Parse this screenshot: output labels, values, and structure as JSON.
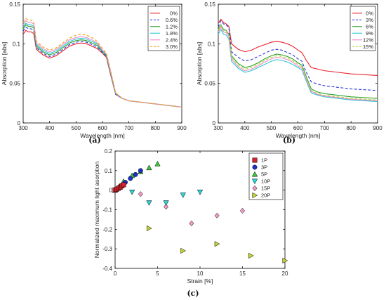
{
  "chart_data": [
    {
      "type": "line",
      "caption": "(a)",
      "xlabel": "Wavelength [nm]",
      "ylabel": "Absorption [abs]",
      "xlim": [
        300,
        900
      ],
      "ylim": [
        0,
        0.15
      ],
      "xticks": [
        300,
        400,
        500,
        600,
        700,
        800,
        900
      ],
      "yticks": [
        0,
        0.05,
        0.1,
        0.15
      ],
      "legend_position": "top-right",
      "x": [
        300,
        310,
        320,
        330,
        340,
        350,
        375,
        400,
        425,
        450,
        475,
        500,
        520,
        540,
        560,
        580,
        600,
        615,
        630,
        650,
        675,
        700,
        750,
        800,
        850,
        900
      ],
      "series": [
        {
          "name": "0%",
          "color": "#e8202a",
          "dash": "solid",
          "values": [
            0.112,
            0.117,
            0.115,
            0.115,
            0.113,
            0.093,
            0.086,
            0.082,
            0.085,
            0.091,
            0.097,
            0.1,
            0.101,
            0.1,
            0.097,
            0.094,
            0.088,
            0.083,
            0.062,
            0.036,
            0.031,
            0.028,
            0.026,
            0.024,
            0.022,
            0.02
          ]
        },
        {
          "name": "0.6%",
          "color": "#2a35d8",
          "dash": "dashed",
          "values": [
            0.116,
            0.121,
            0.119,
            0.119,
            0.117,
            0.095,
            0.088,
            0.084,
            0.087,
            0.093,
            0.099,
            0.102,
            0.103,
            0.102,
            0.099,
            0.096,
            0.089,
            0.084,
            0.063,
            0.036,
            0.031,
            0.028,
            0.026,
            0.024,
            0.022,
            0.02
          ]
        },
        {
          "name": "1.2%",
          "color": "#2ca02c",
          "dash": "solid",
          "values": [
            0.119,
            0.124,
            0.122,
            0.122,
            0.12,
            0.097,
            0.09,
            0.086,
            0.089,
            0.095,
            0.101,
            0.104,
            0.105,
            0.104,
            0.101,
            0.098,
            0.09,
            0.085,
            0.064,
            0.037,
            0.031,
            0.028,
            0.026,
            0.024,
            0.022,
            0.02
          ]
        },
        {
          "name": "1.8%",
          "color": "#2ec7d6",
          "dash": "solid",
          "values": [
            0.121,
            0.126,
            0.124,
            0.124,
            0.122,
            0.099,
            0.092,
            0.088,
            0.091,
            0.097,
            0.103,
            0.106,
            0.107,
            0.106,
            0.103,
            0.1,
            0.091,
            0.086,
            0.065,
            0.037,
            0.031,
            0.028,
            0.026,
            0.024,
            0.022,
            0.02
          ]
        },
        {
          "name": "2.4%",
          "color": "#f08cc8",
          "dash": "solid",
          "values": [
            0.124,
            0.129,
            0.127,
            0.127,
            0.125,
            0.101,
            0.094,
            0.09,
            0.093,
            0.099,
            0.105,
            0.108,
            0.109,
            0.108,
            0.105,
            0.101,
            0.092,
            0.087,
            0.066,
            0.038,
            0.031,
            0.028,
            0.026,
            0.024,
            0.022,
            0.02
          ]
        },
        {
          "name": "3.0%",
          "color": "#e8a21c",
          "dash": "dashed",
          "values": [
            0.127,
            0.132,
            0.13,
            0.13,
            0.128,
            0.103,
            0.096,
            0.092,
            0.095,
            0.101,
            0.107,
            0.111,
            0.112,
            0.111,
            0.108,
            0.103,
            0.094,
            0.088,
            0.067,
            0.038,
            0.031,
            0.028,
            0.026,
            0.024,
            0.022,
            0.02
          ]
        }
      ]
    },
    {
      "type": "line",
      "caption": "(b)",
      "xlabel": "Wavelength [nm]",
      "ylabel": "Absorption [abs]",
      "xlim": [
        300,
        900
      ],
      "ylim": [
        0,
        0.15
      ],
      "xticks": [
        300,
        400,
        500,
        600,
        700,
        800,
        900
      ],
      "yticks": [
        0,
        0.05,
        0.1,
        0.15
      ],
      "legend_position": "top-right",
      "x": [
        300,
        310,
        320,
        330,
        340,
        350,
        375,
        400,
        425,
        450,
        475,
        500,
        520,
        540,
        560,
        580,
        600,
        615,
        630,
        650,
        675,
        700,
        750,
        800,
        850,
        900
      ],
      "series": [
        {
          "name": "0%",
          "color": "#e8202a",
          "dash": "solid",
          "values": [
            0.126,
            0.131,
            0.127,
            0.125,
            0.122,
            0.1,
            0.093,
            0.09,
            0.092,
            0.096,
            0.099,
            0.102,
            0.103,
            0.102,
            0.1,
            0.097,
            0.092,
            0.089,
            0.08,
            0.07,
            0.068,
            0.066,
            0.064,
            0.062,
            0.061,
            0.06
          ]
        },
        {
          "name": "3%",
          "color": "#2a35d8",
          "dash": "dashed",
          "values": [
            0.121,
            0.129,
            0.125,
            0.124,
            0.12,
            0.09,
            0.083,
            0.078,
            0.08,
            0.084,
            0.088,
            0.092,
            0.093,
            0.092,
            0.089,
            0.086,
            0.081,
            0.078,
            0.065,
            0.052,
            0.049,
            0.047,
            0.045,
            0.043,
            0.042,
            0.041
          ]
        },
        {
          "name": "6%",
          "color": "#2ca02c",
          "dash": "solid",
          "values": [
            0.118,
            0.124,
            0.118,
            0.117,
            0.112,
            0.085,
            0.075,
            0.07,
            0.072,
            0.076,
            0.081,
            0.085,
            0.087,
            0.086,
            0.084,
            0.081,
            0.076,
            0.073,
            0.06,
            0.043,
            0.039,
            0.037,
            0.035,
            0.033,
            0.032,
            0.031
          ]
        },
        {
          "name": "9%",
          "color": "#2ec7d6",
          "dash": "solid",
          "values": [
            0.112,
            0.118,
            0.112,
            0.111,
            0.106,
            0.078,
            0.069,
            0.064,
            0.066,
            0.07,
            0.074,
            0.078,
            0.08,
            0.079,
            0.077,
            0.074,
            0.07,
            0.067,
            0.054,
            0.038,
            0.035,
            0.033,
            0.031,
            0.029,
            0.028,
            0.027
          ]
        },
        {
          "name": "12%",
          "color": "#f08cc8",
          "dash": "solid",
          "values": [
            0.115,
            0.121,
            0.115,
            0.114,
            0.109,
            0.081,
            0.071,
            0.066,
            0.068,
            0.072,
            0.077,
            0.081,
            0.083,
            0.082,
            0.08,
            0.077,
            0.072,
            0.069,
            0.056,
            0.04,
            0.036,
            0.034,
            0.032,
            0.03,
            0.029,
            0.028
          ]
        },
        {
          "name": "15%",
          "color": "#b7d43a",
          "dash": "dashed",
          "values": [
            0.117,
            0.123,
            0.117,
            0.116,
            0.111,
            0.083,
            0.073,
            0.068,
            0.07,
            0.074,
            0.079,
            0.083,
            0.085,
            0.084,
            0.082,
            0.079,
            0.074,
            0.071,
            0.058,
            0.041,
            0.037,
            0.035,
            0.033,
            0.031,
            0.03,
            0.029
          ]
        }
      ]
    },
    {
      "type": "scatter",
      "caption": "(c)",
      "xlabel": "Strain [%]",
      "ylabel": "Normalized maximum light asorption",
      "xlim": [
        0,
        20
      ],
      "ylim": [
        -0.4,
        0.2
      ],
      "xticks": [
        0,
        5,
        10,
        15,
        20
      ],
      "yticks": [
        -0.4,
        -0.3,
        -0.2,
        -0.1,
        0,
        0.1,
        0.2
      ],
      "legend_position": "top-right",
      "series": [
        {
          "name": "1P",
          "marker": "square",
          "color": "#d6202c",
          "points": [
            [
              0,
              0
            ],
            [
              0.2,
              0.005
            ],
            [
              0.4,
              0.01
            ],
            [
              0.6,
              0.015
            ],
            [
              0.8,
              0.022
            ],
            [
              1.0,
              0.028
            ]
          ]
        },
        {
          "name": "3P",
          "marker": "circle",
          "color": "#1f2fc8",
          "points": [
            [
              0,
              0
            ],
            [
              0.6,
              0.02
            ],
            [
              1.2,
              0.04
            ],
            [
              1.8,
              0.06
            ],
            [
              2.4,
              0.08
            ],
            [
              3.0,
              0.1
            ]
          ]
        },
        {
          "name": "5P",
          "marker": "triangle-up",
          "color": "#3cc63c",
          "points": [
            [
              0,
              0
            ],
            [
              1,
              0.045
            ],
            [
              2,
              0.075
            ],
            [
              3,
              0.095
            ],
            [
              4,
              0.115
            ],
            [
              5,
              0.135
            ]
          ]
        },
        {
          "name": "10P",
          "marker": "triangle-down",
          "color": "#2ed4d4",
          "points": [
            [
              0,
              0
            ],
            [
              2,
              -0.01
            ],
            [
              4,
              -0.065
            ],
            [
              6,
              -0.065
            ],
            [
              8,
              -0.025
            ],
            [
              10,
              -0.01
            ]
          ]
        },
        {
          "name": "15P",
          "marker": "diamond",
          "color": "#f19ac6",
          "points": [
            [
              0,
              0
            ],
            [
              3,
              -0.02
            ],
            [
              6,
              -0.085
            ],
            [
              9,
              -0.17
            ],
            [
              12,
              -0.13
            ],
            [
              15,
              -0.105
            ]
          ]
        },
        {
          "name": "20P",
          "marker": "triangle-right",
          "color": "#c6d62a",
          "points": [
            [
              0,
              0
            ],
            [
              4,
              -0.195
            ],
            [
              8,
              -0.31
            ],
            [
              12,
              -0.275
            ],
            [
              16,
              -0.335
            ],
            [
              20,
              -0.36
            ]
          ]
        }
      ]
    }
  ]
}
